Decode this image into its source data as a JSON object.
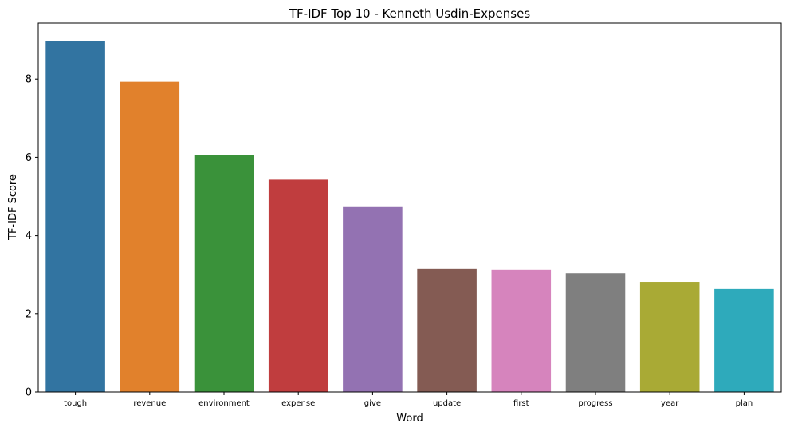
{
  "chart_data": {
    "type": "bar",
    "title": "TF-IDF Top 10 - Kenneth Usdin-Expenses",
    "xlabel": "Word",
    "ylabel": "TF-IDF Score",
    "categories": [
      "tough",
      "revenue",
      "environment",
      "expense",
      "give",
      "update",
      "first",
      "progress",
      "year",
      "plan"
    ],
    "values": [
      8.98,
      7.93,
      6.05,
      5.43,
      4.73,
      3.14,
      3.12,
      3.03,
      2.81,
      2.63
    ],
    "colors": [
      "#3274a1",
      "#e1812c",
      "#3a923a",
      "#c03d3e",
      "#9372b2",
      "#845b53",
      "#d684bd",
      "#7f7f7f",
      "#a9aa35",
      "#2eaabb"
    ],
    "yticks": [
      "0",
      "2",
      "4",
      "6",
      "8"
    ],
    "ylim": [
      0,
      9.43
    ],
    "grid": false,
    "legend": "none"
  }
}
